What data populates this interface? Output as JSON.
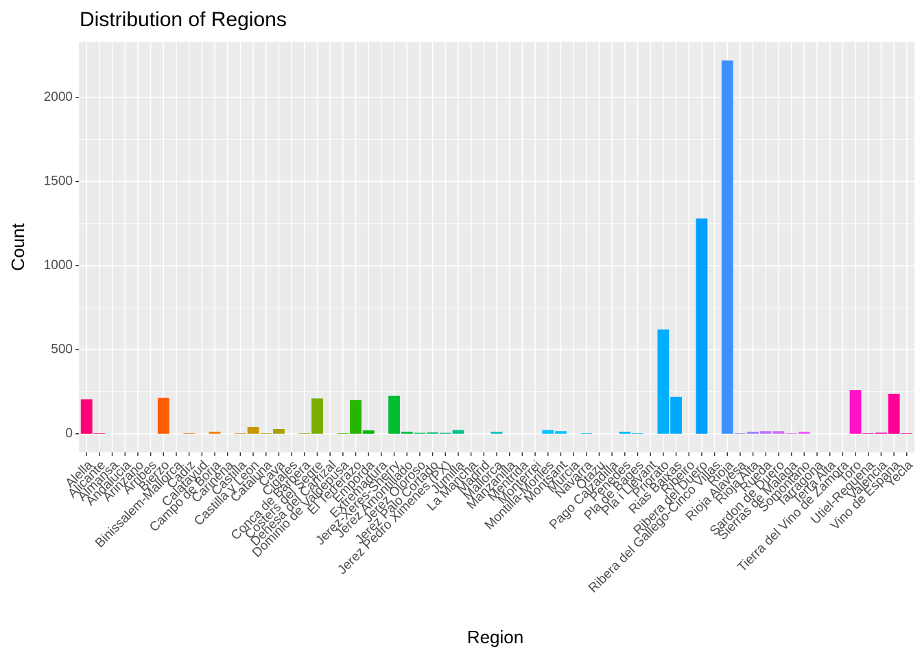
{
  "chart_data": {
    "type": "bar",
    "title": "Distribution of Regions",
    "x_label": "Region",
    "y_label": "Count",
    "categories": [
      "Alella",
      "Alicante",
      "Almansa",
      "Andalucia",
      "Arinzano",
      "Arribes",
      "Bierzo",
      "Binissalem-Mallorca",
      "Cadiz",
      "Calatayud",
      "Campo de Borja",
      "Carinena",
      "Castilla",
      "Castilla y Leon",
      "Cataluna",
      "Cava",
      "Cigales",
      "Conca de Barbera",
      "Costers del Segre",
      "Dehesa del Carrizal",
      "Dominio de Valdepusa",
      "El Terrerazo",
      "Emporda",
      "Extremadura",
      "Jerez-Xeres-Sherry",
      "Jerez Amontillado",
      "Jerez Oloroso",
      "Jerez Palo Cortado",
      "Jerez Pedro Ximenes (PX)",
      "Jumilla",
      "La Mancha",
      "Madrid",
      "Mallorca",
      "Manzanilla",
      "Mentrida",
      "Monterrei",
      "Montilla-Moriles",
      "Montsant",
      "Murcia",
      "Navarra",
      "Otazu",
      "Pago Calzadilla",
      "Penedes",
      "Pla de Bages",
      "Pla i Llevant",
      "Priorato",
      "Rias Baixas",
      "Ribeiro",
      "Ribera del Duero",
      "Ribera del Gallego-Cinco Villas",
      "Rioja",
      "Rioja Alavesa",
      "Rioja Alta",
      "Rueda",
      "Sardon de Duero",
      "Sierras de Malaga",
      "Somontano",
      "Tarragona",
      "Terra Alta",
      "Tierra del Vino de Zamora",
      "Toro",
      "Utiel-Requena",
      "Valencia",
      "Vino de Espana",
      "Yecla"
    ],
    "values": [
      205,
      3,
      0,
      0,
      0,
      0,
      213,
      0,
      3,
      0,
      12,
      0,
      3,
      40,
      3,
      28,
      0,
      3,
      210,
      0,
      3,
      200,
      20,
      0,
      225,
      12,
      5,
      8,
      5,
      22,
      0,
      0,
      12,
      0,
      0,
      0,
      22,
      15,
      0,
      3,
      0,
      0,
      12,
      3,
      0,
      620,
      220,
      0,
      1280,
      0,
      2220,
      3,
      12,
      15,
      15,
      3,
      12,
      0,
      0,
      0,
      260,
      3,
      6,
      237,
      3
    ],
    "palette": "hue",
    "ylim": [
      -111,
      2331
    ],
    "yticks": [
      0,
      500,
      1000,
      1500,
      2000
    ],
    "grid": true
  }
}
